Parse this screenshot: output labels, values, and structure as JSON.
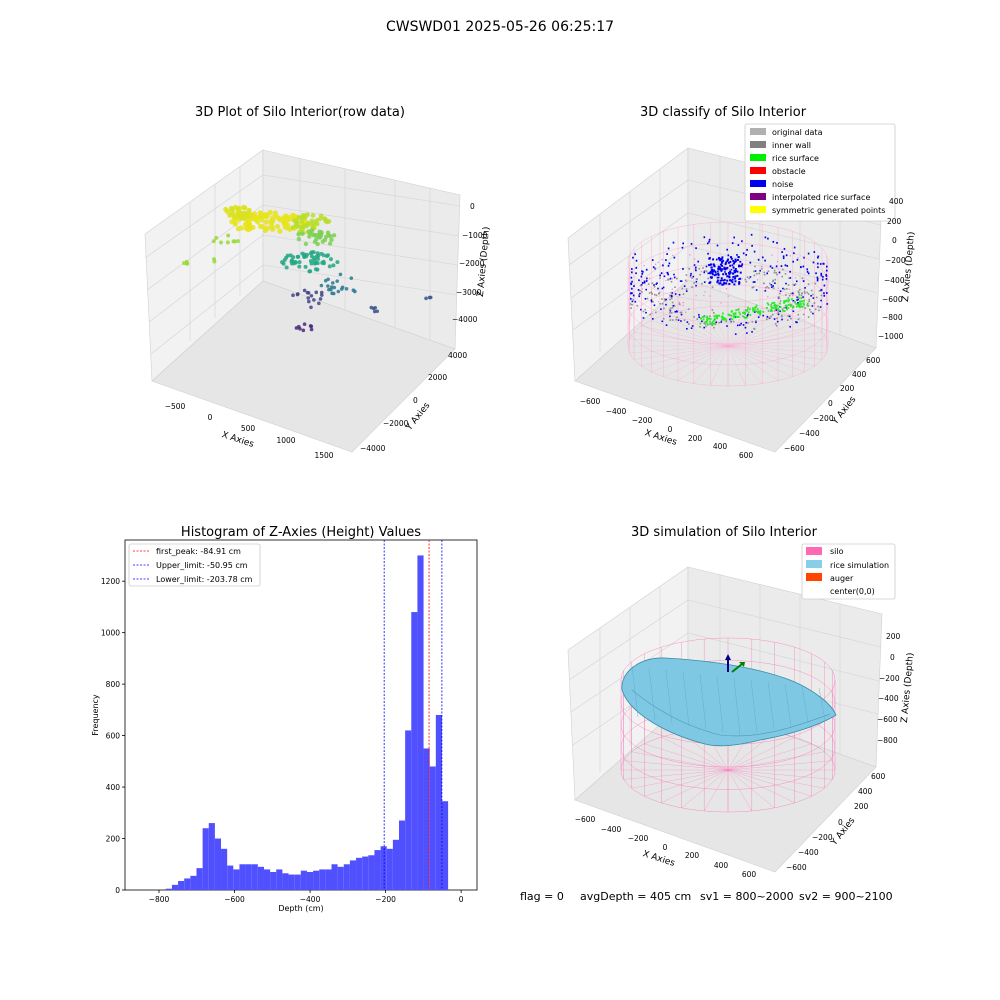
{
  "figure": {
    "suptitle": "CWSWD01 2025-05-26 06:25:17",
    "footer": {
      "flag": "flag = 0",
      "avg_depth": "avgDepth = 405 cm",
      "sv1": "sv1 = 800~2000",
      "sv2": "sv2 = 900~2100"
    }
  },
  "panels": {
    "raw": {
      "title": "3D Plot of Silo Interior(row data)",
      "xlabel": "X Axies",
      "ylabel": "Y Axies",
      "zlabel": "Z Axies (Depth)",
      "xticks": [
        "−500",
        "0",
        "500",
        "1000",
        "1500"
      ],
      "yticks": [
        "−4000",
        "−2000",
        "0",
        "2000",
        "4000"
      ],
      "zticks": [
        "−4000",
        "−3000",
        "−2000",
        "−1000",
        "0"
      ]
    },
    "classify": {
      "title": "3D classify of Silo Interior",
      "xlabel": "X Axies",
      "ylabel": "Y Axies",
      "zlabel": "Z Axies (Depth)",
      "xticks": [
        "−600",
        "−400",
        "−200",
        "0",
        "200",
        "400",
        "600"
      ],
      "yticks": [
        "−600",
        "−400",
        "−200",
        "0",
        "200",
        "400",
        "600"
      ],
      "zticks": [
        "−1000",
        "−800",
        "−600",
        "−400",
        "−200",
        "0",
        "200",
        "400"
      ],
      "legend": [
        {
          "label": "original data",
          "color": "#b0b0b0"
        },
        {
          "label": "inner wall",
          "color": "#808080"
        },
        {
          "label": "rice surface",
          "color": "#00ee00"
        },
        {
          "label": "obstacle",
          "color": "#ff0000"
        },
        {
          "label": "noise",
          "color": "#0000ee"
        },
        {
          "label": "interpolated rice surface",
          "color": "#800080"
        },
        {
          "label": "symmetric generated points",
          "color": "#ffff00"
        }
      ]
    },
    "simulation": {
      "title": "3D simulation of Silo Interior",
      "xlabel": "X Axies",
      "ylabel": "Y Axies",
      "zlabel": "Z Axies (Depth)",
      "xticks": [
        "−600",
        "−400",
        "−200",
        "0",
        "200",
        "400",
        "600"
      ],
      "yticks": [
        "−600",
        "−400",
        "−200",
        "0",
        "200",
        "400",
        "600"
      ],
      "zticks": [
        "−800",
        "−600",
        "−400",
        "−200",
        "0",
        "200"
      ],
      "legend": [
        {
          "label": "silo",
          "color": "#ff69b4"
        },
        {
          "label": "rice simulation",
          "color": "#87ceeb"
        },
        {
          "label": "auger",
          "color": "#ff4500"
        },
        {
          "label": "center(0,0)",
          "color": "#ffffff"
        }
      ]
    }
  },
  "chart_data": {
    "type": "bar",
    "title": "Histogram of Z-Axies (Height) Values",
    "xlabel": "Depth (cm)",
    "ylabel": "Frequency",
    "xlim": [
      -890,
      42
    ],
    "ylim": [
      0,
      1360
    ],
    "xticks": [
      -800,
      -600,
      -400,
      -200,
      0
    ],
    "yticks": [
      0,
      200,
      400,
      600,
      800,
      1000,
      1200
    ],
    "xtick_labels": [
      "−800",
      "−600",
      "−400",
      "−200",
      "0"
    ],
    "ytick_labels": [
      "0",
      "200",
      "400",
      "600",
      "800",
      "1000",
      "1200"
    ],
    "bar_color": "#5050ff",
    "bins": {
      "start": -782,
      "width": 16.25,
      "counts": [
        5,
        20,
        35,
        45,
        55,
        85,
        240,
        260,
        200,
        160,
        95,
        80,
        100,
        100,
        100,
        90,
        80,
        70,
        80,
        65,
        60,
        60,
        75,
        70,
        75,
        80,
        80,
        100,
        90,
        100,
        115,
        125,
        130,
        135,
        155,
        170,
        160,
        195,
        270,
        620,
        1080,
        1300,
        550,
        480,
        680,
        345
      ]
    },
    "reference_lines": [
      {
        "label": "first_peak: -84.91 cm",
        "value": -84.91,
        "color": "#ff0000"
      },
      {
        "label": "Upper_limit: -50.95 cm",
        "value": -50.95,
        "color": "#0000ff"
      },
      {
        "label": "Lower_limit: -203.78 cm",
        "value": -203.78,
        "color": "#0000ff"
      }
    ],
    "legend_position": "upper-left"
  }
}
